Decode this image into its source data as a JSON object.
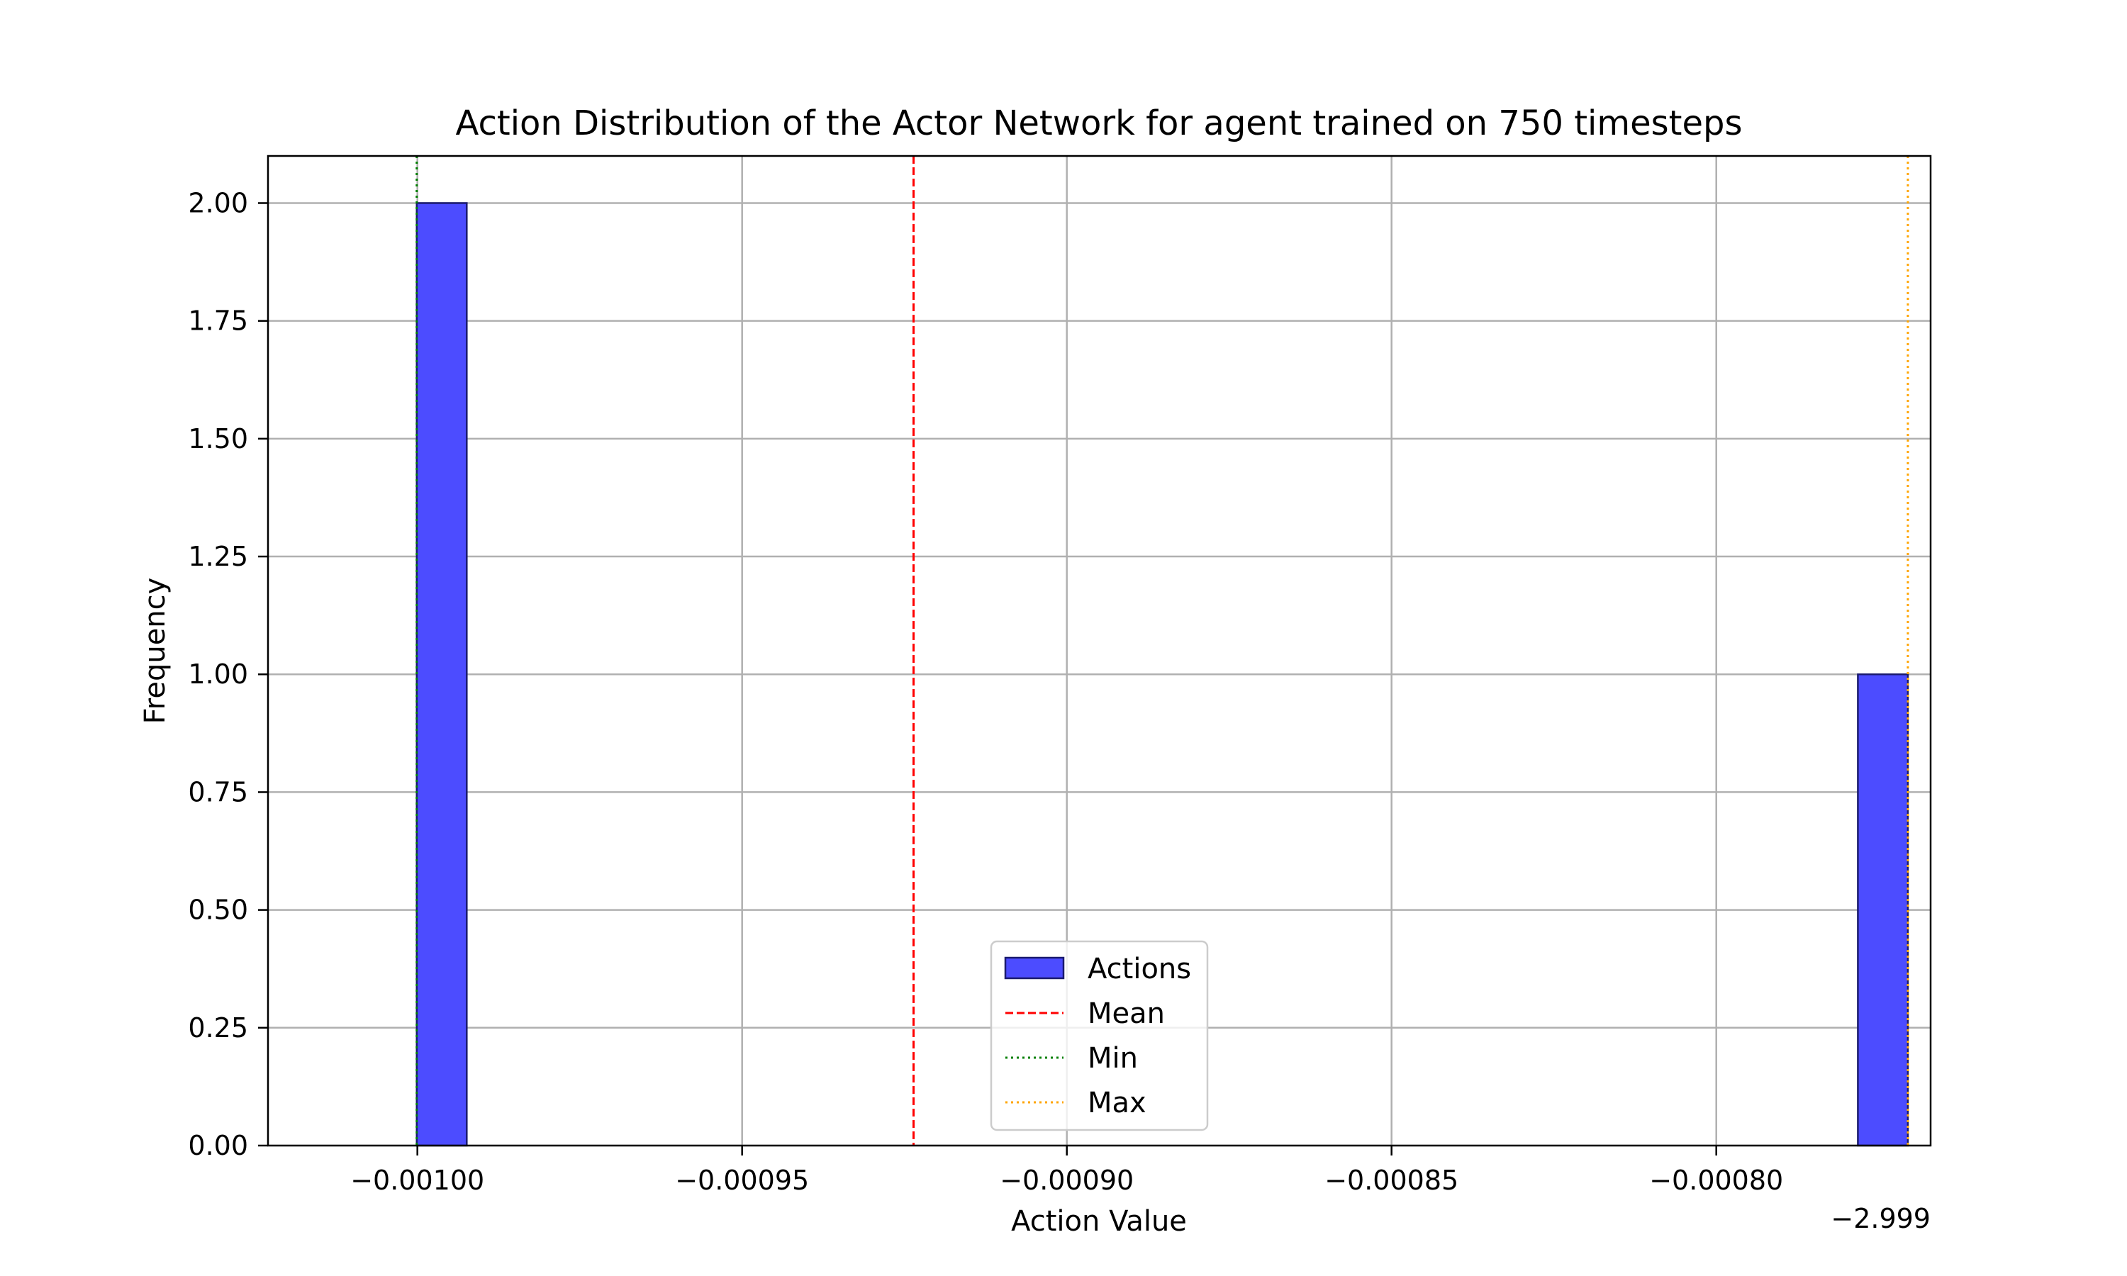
{
  "chart_data": {
    "type": "bar",
    "title": "Action Distribution of the Actor Network for agent trained on 750 timesteps",
    "xlabel": "Action Value",
    "ylabel": "Frequency",
    "x_offset_label": "−2.999",
    "xlim": [
      -0.001023,
      -0.000767
    ],
    "ylim": [
      0,
      2.1
    ],
    "grid": true,
    "x_ticks": [
      {
        "value": -0.001,
        "label": "−0.00100"
      },
      {
        "value": -0.00095,
        "label": "−0.00095"
      },
      {
        "value": -0.0009,
        "label": "−0.00090"
      },
      {
        "value": -0.00085,
        "label": "−0.00085"
      },
      {
        "value": -0.0008,
        "label": "−0.00080"
      }
    ],
    "y_ticks": [
      {
        "value": 0,
        "label": "0.00"
      },
      {
        "value": 0.25,
        "label": "0.25"
      },
      {
        "value": 0.5,
        "label": "0.50"
      },
      {
        "value": 0.75,
        "label": "0.75"
      },
      {
        "value": 1.0,
        "label": "1.00"
      },
      {
        "value": 1.25,
        "label": "1.25"
      },
      {
        "value": 1.5,
        "label": "1.50"
      },
      {
        "value": 1.75,
        "label": "1.75"
      },
      {
        "value": 2.0,
        "label": "2.00"
      }
    ],
    "bins": [
      {
        "x0": -0.0010001,
        "x1": -0.0009924,
        "count": 2
      },
      {
        "x0": -0.0007782,
        "x1": -0.0007705,
        "count": 1
      }
    ],
    "lines": [
      {
        "name": "Mean",
        "value": -0.0009236,
        "color": "#ff0000",
        "style": "dashed"
      },
      {
        "name": "Min",
        "value": -0.0010001,
        "color": "#008000",
        "style": "dotted"
      },
      {
        "name": "Max",
        "value": -0.0007705,
        "color": "#ffa500",
        "style": "dotted"
      }
    ],
    "bar_color": "#4c4cff",
    "bar_edge_color": "#1a1a6e",
    "legend": {
      "position": "lower-center",
      "entries": [
        "Actions",
        "Mean",
        "Min",
        "Max"
      ]
    }
  }
}
